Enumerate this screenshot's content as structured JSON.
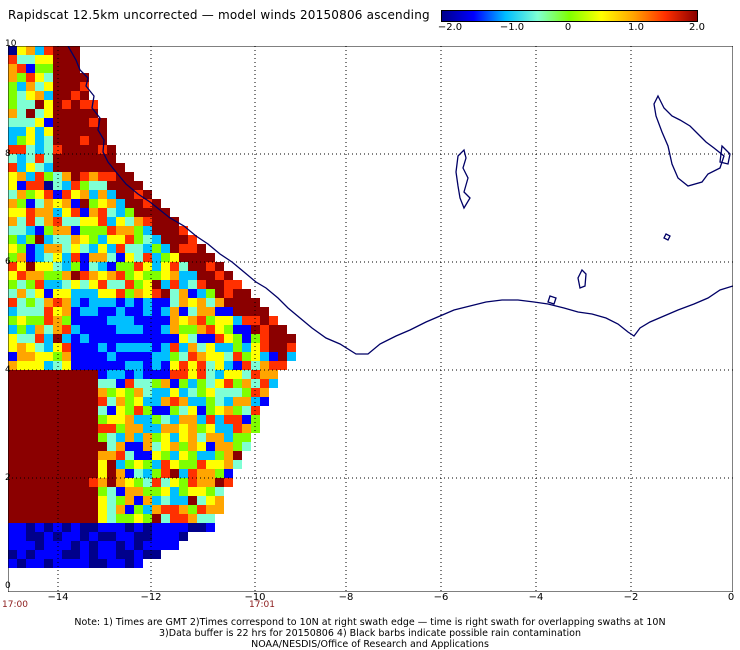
{
  "title": "Rapidscat 12.5km uncorrected — model winds 20150806 ascending",
  "colorbar": {
    "ticks": [
      "−2.0",
      "−1.0",
      "0",
      "1.0",
      "2.0"
    ],
    "colors": [
      "#00008b",
      "#0000ff",
      "#00bfff",
      "#7fffd4",
      "#7fff00",
      "#ffff00",
      "#ffa500",
      "#ff3000",
      "#8b0000"
    ]
  },
  "axes": {
    "x_ticks": [
      "−14",
      "−12",
      "−10",
      "−8",
      "−6",
      "−4",
      "−2",
      "0"
    ],
    "y_ticks": [
      "10",
      "8",
      "6",
      "4",
      "2",
      "0"
    ],
    "xlim": [
      -15,
      0
    ],
    "ylim": [
      0,
      10
    ]
  },
  "swath_times": [
    "17:00",
    "17:01"
  ],
  "notes": [
    "Note: 1) Times are GMT 2)Times correspond to 10N at right swath edge — time is right swath for overlapping swaths at 10N",
    "3)Data buffer is 22 hrs for 20150806 4) Black barbs indicate possible rain contamination",
    "NOAA/NESDIS/Office of Research and Applications"
  ]
}
